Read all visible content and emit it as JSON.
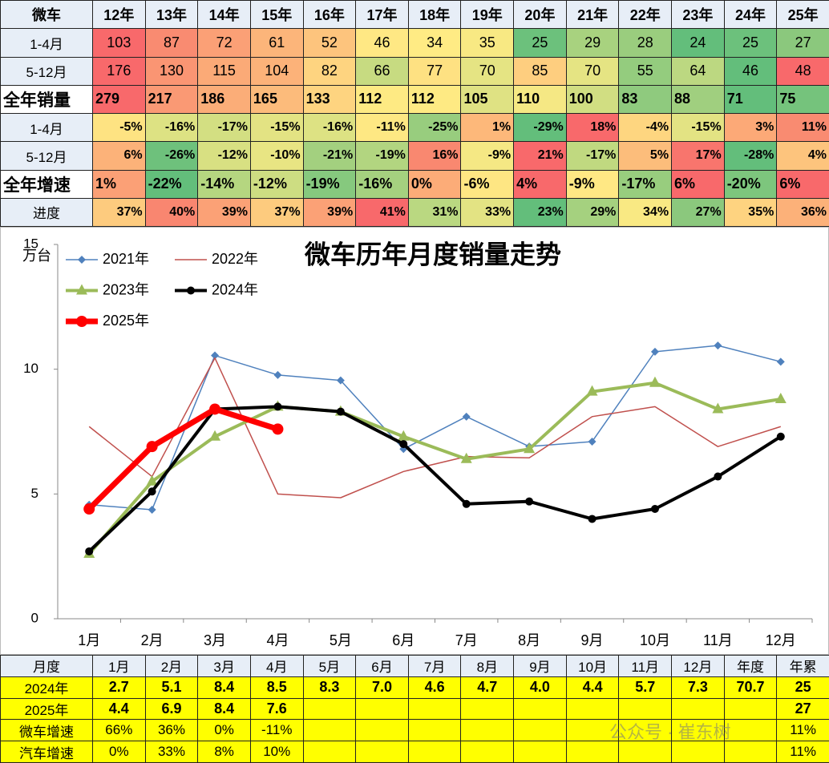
{
  "top_table": {
    "columns": [
      "微车",
      "12年",
      "13年",
      "14年",
      "15年",
      "16年",
      "17年",
      "18年",
      "19年",
      "20年",
      "21年",
      "22年",
      "23年",
      "24年",
      "25年"
    ],
    "rows": [
      {
        "label": "1-4月",
        "cells": [
          "103",
          "87",
          "72",
          "61",
          "52",
          "46",
          "34",
          "35",
          "25",
          "29",
          "28",
          "24",
          "25",
          "27"
        ],
        "colors": [
          "#f8696b",
          "#f98b71",
          "#fba076",
          "#fcb57a",
          "#fdc47d",
          "#ffe884",
          "#ffeb84",
          "#f8e983",
          "#6cc17c",
          "#a8d27f",
          "#9acd7e",
          "#63be7b",
          "#6cc17c",
          "#8bc87d"
        ]
      },
      {
        "label": "5-12月",
        "cells": [
          "176",
          "130",
          "115",
          "104",
          "82",
          "66",
          "77",
          "70",
          "85",
          "70",
          "55",
          "64",
          "46",
          "48"
        ],
        "colors": [
          "#f8696b",
          "#fa9573",
          "#fbaa77",
          "#fcb279",
          "#fed480",
          "#c7db81",
          "#fee182",
          "#e5e483",
          "#fece7f",
          "#e5e483",
          "#94cc7e",
          "#bcd881",
          "#63be7b",
          "#f8696b"
        ]
      },
      {
        "label": "全年销量",
        "cells": [
          "279",
          "217",
          "186",
          "165",
          "133",
          "112",
          "112",
          "105",
          "110",
          "100",
          "83",
          "88",
          "71",
          "75"
        ],
        "colors": [
          "#f8696b",
          "#fa9974",
          "#fbad78",
          "#fcbb7b",
          "#fed480",
          "#feea83",
          "#feea83",
          "#dfe283",
          "#f5e884",
          "#d1de82",
          "#8fca7e",
          "#a0cf7f",
          "#63be7b",
          "#75c37c"
        ]
      },
      {
        "label": "1-4月",
        "cells": [
          "-5%",
          "-16%",
          "-17%",
          "-15%",
          "-16%",
          "-11%",
          "-25%",
          "1%",
          "-29%",
          "18%",
          "-4%",
          "-15%",
          "3%",
          "11%"
        ],
        "colors": [
          "#fee382",
          "#dde283",
          "#d3df82",
          "#e3e383",
          "#dde283",
          "#fee883",
          "#98cd7e",
          "#fdb87a",
          "#63be7b",
          "#f8696b",
          "#fed680",
          "#e3e383",
          "#fca977",
          "#f98b71"
        ]
      },
      {
        "label": "5-12月",
        "cells": [
          "6%",
          "-26%",
          "-12%",
          "-10%",
          "-21%",
          "-19%",
          "16%",
          "-9%",
          "21%",
          "-17%",
          "5%",
          "17%",
          "-28%",
          "4%"
        ],
        "colors": [
          "#fcb279",
          "#6ec17c",
          "#d8e082",
          "#e8e583",
          "#a3d07f",
          "#b2d580",
          "#f98870",
          "#f5e884",
          "#f8696b",
          "#c0d980",
          "#fcbd7b",
          "#f8756d",
          "#63be7b",
          "#fdc47d"
        ]
      },
      {
        "label": "全年增速",
        "cells": [
          "1%",
          "-22%",
          "-14%",
          "-12%",
          "-19%",
          "-16%",
          "0%",
          "-6%",
          "4%",
          "-9%",
          "-17%",
          "6%",
          "-20%",
          "6%"
        ],
        "colors": [
          "#fba076",
          "#63be7b",
          "#b5d680",
          "#cddd82",
          "#86c97e",
          "#a5d17f",
          "#fcac78",
          "#fee683",
          "#f8696b",
          "#ffe884",
          "#98cd7e",
          "#f8696b",
          "#7dc67d",
          "#f8696b"
        ]
      },
      {
        "label": "进度",
        "cells": [
          "37%",
          "40%",
          "39%",
          "37%",
          "39%",
          "41%",
          "31%",
          "33%",
          "23%",
          "29%",
          "34%",
          "27%",
          "35%",
          "36%"
        ],
        "colors": [
          "#fdcb7e",
          "#f98670",
          "#fba176",
          "#fdcb7e",
          "#fba176",
          "#f8696b",
          "#bad881",
          "#e3e383",
          "#63be7b",
          "#a5d17f",
          "#f9e983",
          "#8bc87d",
          "#fed380",
          "#fcb179"
        ]
      }
    ]
  },
  "chart_data": {
    "type": "line",
    "title": "微车历年月度销量走势",
    "y_label": "万台",
    "categories": [
      "1月",
      "2月",
      "3月",
      "4月",
      "5月",
      "6月",
      "7月",
      "8月",
      "9月",
      "10月",
      "11月",
      "12月"
    ],
    "ylim": [
      0,
      15
    ],
    "yticks": [
      0,
      5,
      10,
      15
    ],
    "grid": false,
    "series": [
      {
        "name": "2021年",
        "color": "#4f81bd",
        "width": 1.5,
        "marker": "diamond",
        "values": [
          4.57,
          4.37,
          10.55,
          9.77,
          9.55,
          6.8,
          8.1,
          6.9,
          7.1,
          10.7,
          10.95,
          10.3
        ]
      },
      {
        "name": "2022年",
        "color": "#c0504d",
        "width": 1.5,
        "marker": "none",
        "values": [
          7.7,
          5.7,
          10.45,
          5.0,
          4.85,
          5.9,
          6.5,
          6.45,
          8.1,
          8.5,
          6.9,
          7.7
        ]
      },
      {
        "name": "2023年",
        "color": "#9bbb59",
        "width": 4,
        "marker": "triangle",
        "values": [
          2.6,
          5.5,
          7.3,
          8.5,
          8.3,
          7.3,
          6.4,
          6.8,
          9.1,
          9.45,
          8.4,
          8.8
        ]
      },
      {
        "name": "2024年",
        "color": "#000000",
        "width": 4,
        "marker": "circle",
        "values": [
          2.7,
          5.1,
          8.4,
          8.5,
          8.3,
          7.0,
          4.6,
          4.7,
          4.0,
          4.4,
          5.7,
          7.3
        ]
      },
      {
        "name": "2025年",
        "color": "#ff0000",
        "width": 7,
        "marker": "circle",
        "values": [
          4.4,
          6.9,
          8.4,
          7.6,
          null,
          null,
          null,
          null,
          null,
          null,
          null,
          null
        ]
      }
    ]
  },
  "bottom_table": {
    "columns": [
      "月度",
      "1月",
      "2月",
      "3月",
      "4月",
      "5月",
      "6月",
      "7月",
      "8月",
      "9月",
      "10月",
      "11月",
      "12月",
      "年度",
      "年累"
    ],
    "rows": [
      {
        "label": "2024年",
        "cells": [
          "2.7",
          "5.1",
          "8.4",
          "8.5",
          "8.3",
          "7.0",
          "4.6",
          "4.7",
          "4.0",
          "4.4",
          "5.7",
          "7.3",
          "70.7",
          "25"
        ]
      },
      {
        "label": "2025年",
        "cells": [
          "4.4",
          "6.9",
          "8.4",
          "7.6",
          null,
          null,
          null,
          null,
          null,
          null,
          null,
          null,
          null,
          "27"
        ]
      },
      {
        "label": "微车增速",
        "cells": [
          "66%",
          "36%",
          "0%",
          "-11%",
          null,
          null,
          null,
          null,
          null,
          null,
          null,
          null,
          null,
          "11%"
        ]
      },
      {
        "label": "汽车增速",
        "cells": [
          "0%",
          "33%",
          "8%",
          "10%",
          null,
          null,
          null,
          null,
          null,
          null,
          null,
          null,
          null,
          "11%"
        ]
      }
    ]
  },
  "watermark": "公众号 · 崔东树"
}
